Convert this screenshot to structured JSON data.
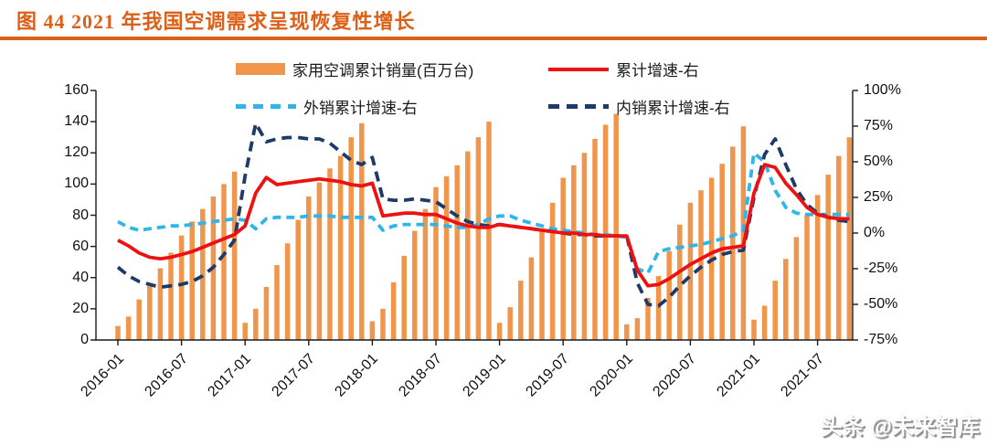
{
  "title": "图 44 2021 年我国空调需求呈现恢复性增长",
  "watermark": "头条 @未来智库",
  "colors": {
    "title_orange": "#DC6018",
    "rule_orange": "#DC6018",
    "bar_orange": "#F0964C",
    "line_red": "#EE1111",
    "line_lightblue": "#2EB5EA",
    "line_navy": "#1E3A68",
    "axis_black": "#1a1a1a"
  },
  "chart_data": {
    "type": "bar",
    "subtype": "combo-bar-line",
    "grid": false,
    "legend_position": "top",
    "x_months": [
      "2016-01",
      "2016-02",
      "2016-03",
      "2016-04",
      "2016-05",
      "2016-06",
      "2016-07",
      "2016-08",
      "2016-09",
      "2016-10",
      "2016-11",
      "2016-12",
      "2017-01",
      "2017-02",
      "2017-03",
      "2017-04",
      "2017-05",
      "2017-06",
      "2017-07",
      "2017-08",
      "2017-09",
      "2017-10",
      "2017-11",
      "2017-12",
      "2018-01",
      "2018-02",
      "2018-03",
      "2018-04",
      "2018-05",
      "2018-06",
      "2018-07",
      "2018-08",
      "2018-09",
      "2018-10",
      "2018-11",
      "2018-12",
      "2019-01",
      "2019-02",
      "2019-03",
      "2019-04",
      "2019-05",
      "2019-06",
      "2019-07",
      "2019-08",
      "2019-09",
      "2019-10",
      "2019-11",
      "2019-12",
      "2020-01",
      "2020-02",
      "2020-03",
      "2020-04",
      "2020-05",
      "2020-06",
      "2020-07",
      "2020-08",
      "2020-09",
      "2020-10",
      "2020-11",
      "2020-12",
      "2021-01",
      "2021-02",
      "2021-03",
      "2021-04",
      "2021-05",
      "2021-06",
      "2021-07",
      "2021-08",
      "2021-09",
      "2021-10"
    ],
    "x_tick_labels": [
      "2016-01",
      "2016-07",
      "2017-01",
      "2017-07",
      "2018-01",
      "2018-07",
      "2019-01",
      "2019-07",
      "2020-01",
      "2020-07",
      "2021-01",
      "2021-07"
    ],
    "left_axis": {
      "min": 0,
      "max": 160,
      "step": 20,
      "ticks_top_to_bottom": [
        "160",
        "140",
        "120",
        "100",
        "80",
        "60",
        "40",
        "20",
        "0"
      ]
    },
    "right_axis": {
      "min": -75,
      "max": 100,
      "step": 25,
      "ticks_top_to_bottom": [
        "100%",
        "75%",
        "50%",
        "25%",
        "0%",
        "-25%",
        "-50%",
        "-75%"
      ]
    },
    "series": [
      {
        "name": "家用空调累计销量(百万台)",
        "type": "bar",
        "axis": "left",
        "color": "#F0964C",
        "line_style": "none",
        "values": [
          9,
          15,
          26,
          35,
          46,
          56,
          67,
          76,
          84,
          92,
          100,
          108,
          11,
          20,
          34,
          48,
          62,
          77,
          92,
          101,
          110,
          118,
          130,
          139,
          12,
          20,
          37,
          54,
          70,
          84,
          98,
          105,
          112,
          121,
          130,
          140,
          11,
          21,
          38,
          53,
          70,
          88,
          104,
          112,
          120,
          129,
          138,
          145,
          10,
          14,
          27,
          41,
          57,
          74,
          88,
          96,
          104,
          113,
          124,
          137,
          13,
          22,
          38,
          52,
          66,
          80,
          93,
          106,
          118,
          130
        ]
      },
      {
        "name": "累计增速-右",
        "type": "line",
        "axis": "right",
        "color": "#EE1111",
        "line_style": "solid",
        "values": [
          -5,
          -9,
          -14,
          -17,
          -18,
          -17,
          -15,
          -13,
          -10,
          -7,
          -4,
          -1,
          5,
          28,
          39,
          34,
          35,
          36,
          37,
          38,
          37,
          36,
          34,
          33,
          35,
          12,
          13,
          14,
          14,
          13,
          13,
          10,
          7,
          5,
          4,
          4,
          6,
          5,
          4,
          3,
          2,
          1,
          0,
          0,
          -1,
          -1,
          -2,
          -2,
          -2,
          -26,
          -37,
          -36,
          -32,
          -27,
          -22,
          -18,
          -14,
          -11,
          -10,
          -9,
          28,
          48,
          46,
          35,
          27,
          18,
          13,
          11,
          10,
          10
        ]
      },
      {
        "name": "外销累计增速-右",
        "type": "line",
        "axis": "right",
        "color": "#2EB5EA",
        "line_style": "dashed",
        "values": [
          8,
          4,
          2,
          3,
          4,
          5,
          5,
          6,
          7,
          8,
          9,
          10,
          9,
          3,
          10,
          11,
          11,
          11,
          12,
          12,
          12,
          11,
          11,
          11,
          11,
          2,
          5,
          6,
          6,
          6,
          6,
          5,
          4,
          4,
          6,
          10,
          12,
          12,
          9,
          7,
          5,
          3,
          2,
          1,
          0,
          -1,
          -1,
          -2,
          -3,
          -25,
          -28,
          -13,
          -11,
          -10,
          -9,
          -8,
          -6,
          -4,
          -2,
          2,
          56,
          50,
          30,
          18,
          14,
          13,
          13,
          13,
          13,
          13
        ]
      },
      {
        "name": "内销累计增速-右",
        "type": "line",
        "axis": "right",
        "color": "#1E3A68",
        "line_style": "dashed",
        "values": [
          -24,
          -30,
          -34,
          -36,
          -38,
          -37,
          -36,
          -34,
          -30,
          -24,
          -15,
          -5,
          40,
          77,
          64,
          66,
          67,
          67,
          66,
          66,
          63,
          57,
          51,
          48,
          53,
          24,
          23,
          23,
          24,
          23,
          22,
          17,
          12,
          8,
          6,
          5,
          6,
          5,
          4,
          3,
          2,
          1,
          0,
          -1,
          -1,
          -2,
          -2,
          -2,
          -2,
          -35,
          -50,
          -51,
          -45,
          -37,
          -30,
          -24,
          -19,
          -15,
          -13,
          -12,
          25,
          55,
          66,
          48,
          31,
          20,
          14,
          11,
          9,
          8
        ]
      }
    ]
  }
}
